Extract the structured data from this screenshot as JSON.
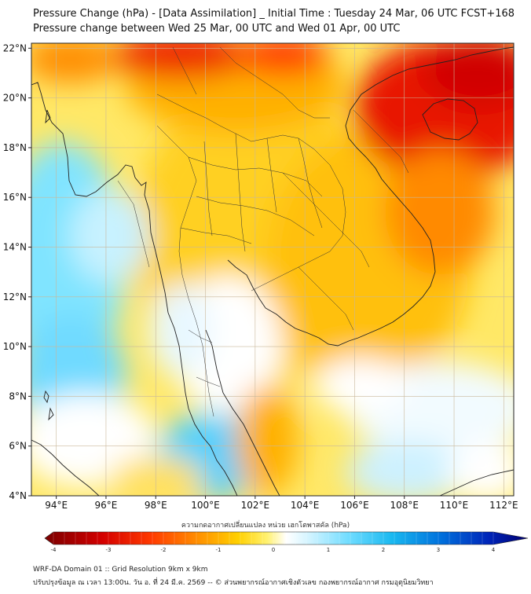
{
  "title_line1": "Pressure Change (hPa) - [Data Assimilation] _ Initial Time : Tuesday 24 Mar, 06 UTC FCST+168",
  "title_line2": "Pressure change between Wed 25 Mar, 00 UTC and Wed 01 Apr, 00 UTC",
  "lat_labels": [
    "22°N",
    "20°N",
    "18°N",
    "16°N",
    "14°N",
    "12°N",
    "10°N",
    "8°N",
    "6°N",
    "4°N"
  ],
  "lon_labels": [
    "94°E",
    "96°E",
    "98°E",
    "100°E",
    "102°E",
    "104°E",
    "106°E",
    "108°E",
    "110°E",
    "112°E"
  ],
  "lat_values": [
    22,
    20,
    18,
    16,
    14,
    12,
    10,
    8,
    6,
    4
  ],
  "lon_values": [
    94,
    96,
    98,
    100,
    102,
    104,
    106,
    108,
    110,
    112
  ],
  "colorbar": {
    "title": "ความกดอากาศเปลี่ยนแปลง หน่วย เฮกโตพาสคัล (hPa)",
    "range": [
      -4,
      4
    ],
    "tick_labels": [
      "-4",
      "-3",
      "-2",
      "-1",
      "0",
      "1",
      "2",
      "3",
      "4"
    ],
    "tick_values": [
      -4,
      -3,
      -2,
      -1,
      0,
      1,
      2,
      3,
      4
    ],
    "colors": [
      "#7a0000",
      "#c80000",
      "#ff1a00",
      "#ff6a00",
      "#ffb000",
      "#ffe000",
      "#fff7a0",
      "#ffffff",
      "#d8f6ff",
      "#80e0ff",
      "#20c0f0",
      "#0080e0",
      "#0030c0",
      "#000080"
    ]
  },
  "footer_line1": "WRF-DA Domain 01 :: Grid Resolution 9km x 9km",
  "footer_line2": "ปรับปรุงข้อมูล ณ เวลา 13:00น. วัน อ. ที่ 24 มี.ค. 2569 -- © ส่วนพยากรณ์อากาศเชิงตัวเลข กองพยากรณ์อากาศ กรมอุตุนิยมวิทยา"
}
